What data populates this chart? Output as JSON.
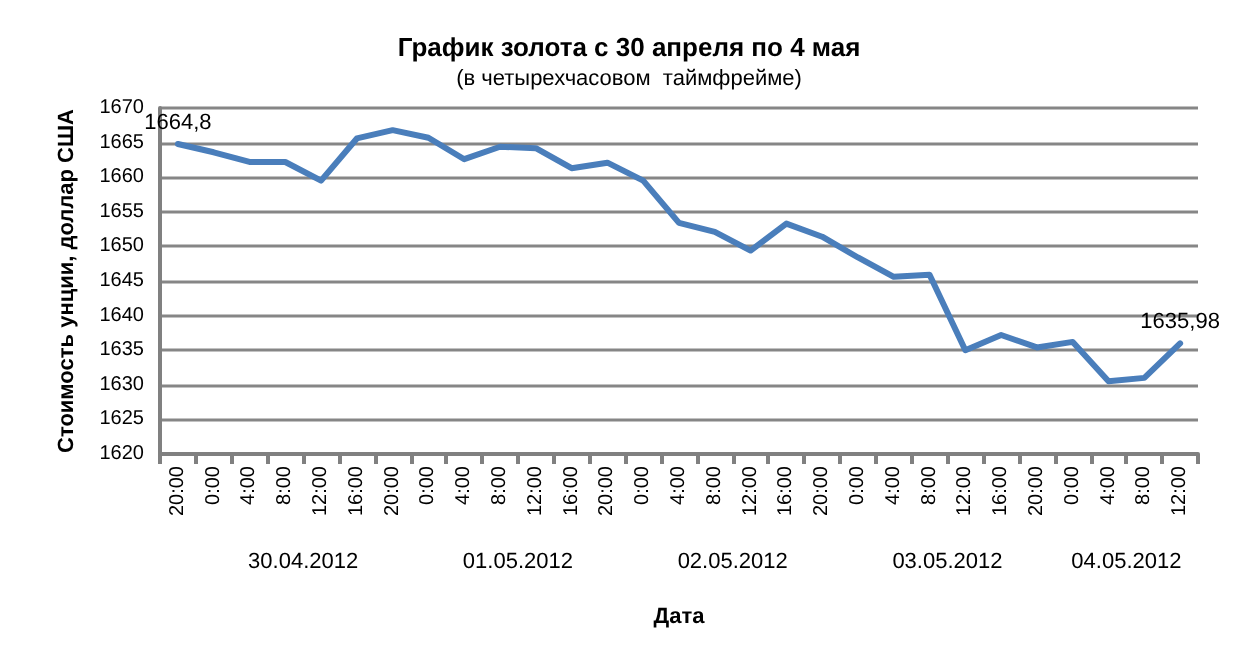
{
  "chart_data": {
    "type": "line",
    "title": "График золота с 30 апреля по 4 мая",
    "subtitle": "(в четырехчасовом  таймфрейме)",
    "xlabel": "Дата",
    "ylabel": "Стоимость унции, доллар США",
    "categories": [
      "20:00",
      "0:00",
      "4:00",
      "8:00",
      "12:00",
      "16:00",
      "20:00",
      "0:00",
      "4:00",
      "8:00",
      "12:00",
      "16:00",
      "20:00",
      "0:00",
      "4:00",
      "8:00",
      "12:00",
      "16:00",
      "20:00",
      "0:00",
      "4:00",
      "8:00",
      "12:00",
      "16:00",
      "20:00",
      "0:00",
      "4:00",
      "8:00",
      "12:00"
    ],
    "series": [
      {
        "color": "#4a7ebb",
        "values": [
          1664.8,
          1663.6,
          1662.2,
          1662.2,
          1659.5,
          1665.6,
          1666.8,
          1665.7,
          1662.6,
          1664.4,
          1664.2,
          1661.3,
          1662.1,
          1659.5,
          1653.4,
          1652.1,
          1649.4,
          1653.3,
          1651.4,
          1648.4,
          1645.6,
          1645.9,
          1635.0,
          1637.2,
          1635.4,
          1636.2,
          1630.5,
          1631.0,
          1635.98
        ],
        "value_labels": [
          "1664,8",
          null,
          null,
          null,
          null,
          null,
          null,
          null,
          null,
          null,
          null,
          null,
          null,
          null,
          null,
          null,
          null,
          null,
          null,
          null,
          null,
          null,
          null,
          null,
          null,
          null,
          null,
          null,
          "1635,98"
        ]
      }
    ],
    "annotations": [
      "30.04.2012",
      "01.05.2012",
      "02.05.2012",
      "03.05.2012",
      "04.05.2012"
    ],
    "ylim": [
      1620,
      1670
    ],
    "yticks": [
      1620,
      1625,
      1630,
      1635,
      1640,
      1645,
      1650,
      1655,
      1660,
      1665,
      1670
    ],
    "grid": "y",
    "marker": "none",
    "line_style": "solid"
  }
}
